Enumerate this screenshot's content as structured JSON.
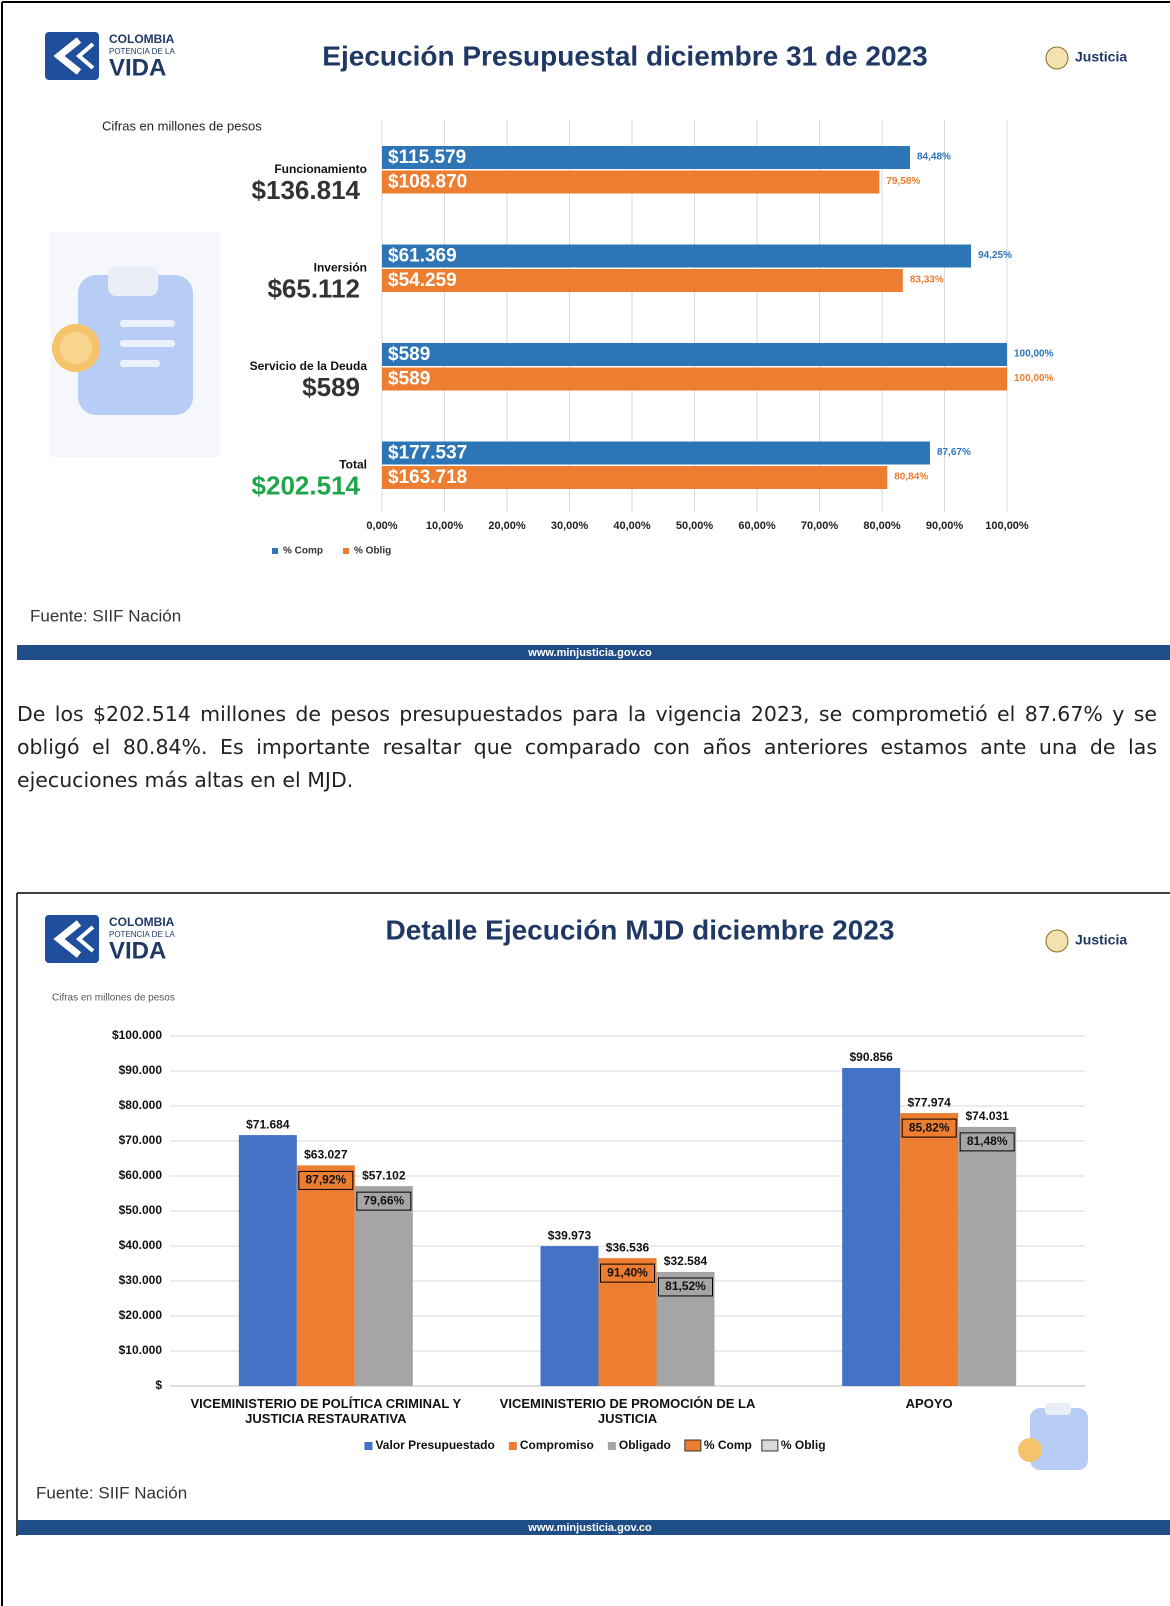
{
  "brand": {
    "line1": "COLOMBIA",
    "line2": "POTENCIA DE LA",
    "line3": "VIDA",
    "ministry": "Justicia"
  },
  "source": "Fuente: SIIF Nación",
  "footer_url": "www.minjusticia.gov.co",
  "paragraph": "De los $202.514 millones de pesos presupuestados para la vigencia 2023, se comprometió el 87.67% y se obligó el 80.84%. Es importante resaltar que comparado con años anteriores estamos ante una de las ejecuciones más altas en el MJD.",
  "chart_data": [
    {
      "type": "hbar",
      "title": "Ejecución Presupuestal diciembre 31 de 2023",
      "subtitle": "Cifras en millones de pesos",
      "categories": [
        "Funcionamiento",
        "Inversión",
        "Servicio de la Deuda",
        "Total"
      ],
      "category_totals": [
        "$136.814",
        "$65.112",
        "$589",
        "$202.514"
      ],
      "category_total_colors": [
        "#333333",
        "#333333",
        "#333333",
        "#1fa64a"
      ],
      "series": [
        {
          "name": "% Comp",
          "color": "#2e75b6",
          "values": [
            84.48,
            94.25,
            100,
            87.67
          ],
          "value_labels": [
            "84,48%",
            "94,25%",
            "100,00%",
            "87,67%"
          ],
          "amounts": [
            "$115.579",
            "$61.369",
            "$589",
            "$177.537"
          ]
        },
        {
          "name": "% Oblig",
          "color": "#ed7d31",
          "values": [
            79.58,
            83.33,
            100,
            80.84
          ],
          "value_labels": [
            "79,58%",
            "83,33%",
            "100,00%",
            "80,84%"
          ],
          "amounts": [
            "$108.870",
            "$54.259",
            "$589",
            "$163.718"
          ]
        }
      ],
      "xlim": [
        0,
        100
      ],
      "xticks": [
        {
          "value": 0,
          "label": "0,00%"
        },
        {
          "value": 10,
          "label": "10,00%"
        },
        {
          "value": 20,
          "label": "20,00%"
        },
        {
          "value": 30,
          "label": "30,00%"
        },
        {
          "value": 40,
          "label": "40,00%"
        },
        {
          "value": 50,
          "label": "50,00%"
        },
        {
          "value": 60,
          "label": "60,00%"
        },
        {
          "value": 70,
          "label": "70,00%"
        },
        {
          "value": 80,
          "label": "80,00%"
        },
        {
          "value": 90,
          "label": "90,00%"
        },
        {
          "value": 100,
          "label": "100,00%"
        }
      ],
      "grid": true,
      "legend": "bottom-left"
    },
    {
      "type": "bar",
      "title": "Detalle Ejecución MJD diciembre 2023",
      "subtitle": "Cifras en millones de pesos",
      "categories": [
        "VICEMINISTERIO DE POLÍTICA CRIMINAL Y JUSTICIA RESTAURATIVA",
        "VICEMINISTERIO DE PROMOCIÓN DE LA JUSTICIA",
        "APOYO"
      ],
      "series": [
        {
          "name": "Valor Presupuestado",
          "color": "#4472c4",
          "values": [
            71684,
            39973,
            90856
          ],
          "value_labels": [
            "$71.684",
            "$39.973",
            "$90.856"
          ]
        },
        {
          "name": "Compromiso",
          "color": "#ed7d31",
          "values": [
            63027,
            36536,
            77974
          ],
          "value_labels": [
            "$63.027",
            "$36.536",
            "$77.974"
          ]
        },
        {
          "name": "Obligado",
          "color": "#a5a5a5",
          "values": [
            57102,
            32584,
            74031
          ],
          "value_labels": [
            "$57.102",
            "$32.584",
            "$74.031"
          ]
        }
      ],
      "ratio_series": [
        {
          "name": "% Comp",
          "color": "#ed7d31",
          "values": [
            87.92,
            91.4,
            85.82
          ],
          "value_labels": [
            "87,92%",
            "91,40%",
            "85,82%"
          ]
        },
        {
          "name": "% Oblig",
          "color": "#d9d9d9",
          "values": [
            79.66,
            81.52,
            81.48
          ],
          "value_labels": [
            "79,66%",
            "81,52%",
            "81,48%"
          ]
        }
      ],
      "ylim": [
        0,
        100000
      ],
      "yticks": [
        {
          "value": 0,
          "label": "$"
        },
        {
          "value": 10000,
          "label": "$10.000"
        },
        {
          "value": 20000,
          "label": "$20.000"
        },
        {
          "value": 30000,
          "label": "$30.000"
        },
        {
          "value": 40000,
          "label": "$40.000"
        },
        {
          "value": 50000,
          "label": "$50.000"
        },
        {
          "value": 60000,
          "label": "$60.000"
        },
        {
          "value": 70000,
          "label": "$70.000"
        },
        {
          "value": 80000,
          "label": "$80.000"
        },
        {
          "value": 90000,
          "label": "$90.000"
        },
        {
          "value": 100000,
          "label": "$100.000"
        }
      ],
      "grid": true,
      "legend": "bottom"
    }
  ]
}
